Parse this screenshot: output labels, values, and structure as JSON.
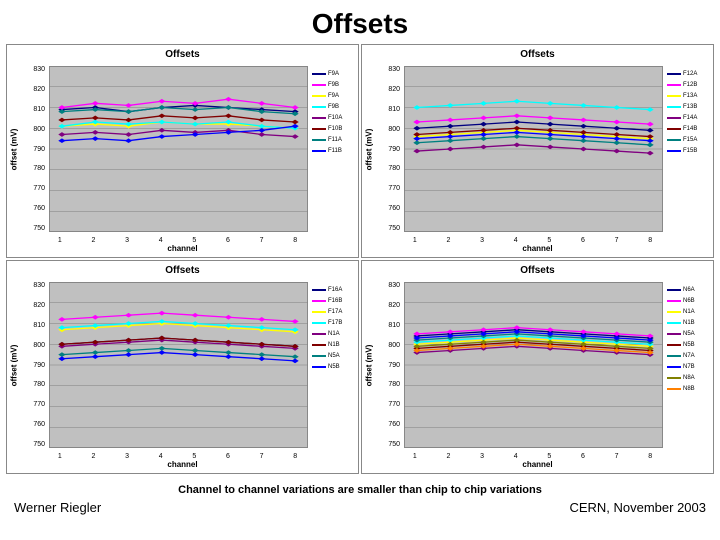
{
  "title": "Offsets",
  "caption": "Channel to channel variations are smaller than chip to chip variations",
  "footer": {
    "left": "Werner Riegler",
    "right": "CERN, November 2003"
  },
  "axis": {
    "xlabel": "channel",
    "ylabel": "offset (mV)",
    "xticks": [
      1,
      2,
      3,
      4,
      5,
      6,
      7,
      8
    ],
    "yticks": [
      830,
      820,
      810,
      800,
      790,
      780,
      770,
      760,
      750
    ],
    "ylim": [
      750,
      830
    ]
  },
  "colors": {
    "plot_bg": "#c0c0c0",
    "grid": "#808080"
  },
  "charts": [
    {
      "title": "Offsets",
      "legend": [
        "F9A",
        "F9B",
        "F9A",
        "F9B",
        "F10A",
        "F10B",
        "F11A",
        "F11B"
      ],
      "series": [
        {
          "color": "#000080",
          "vals": [
            809,
            810,
            808,
            810,
            811,
            810,
            809,
            808
          ]
        },
        {
          "color": "#ff00ff",
          "vals": [
            810,
            812,
            811,
            813,
            812,
            814,
            812,
            810
          ]
        },
        {
          "color": "#ffff00",
          "vals": [
            801,
            802,
            801,
            803,
            802,
            802,
            801,
            800
          ]
        },
        {
          "color": "#00ffff",
          "vals": [
            801,
            803,
            802,
            803,
            802,
            803,
            801,
            800
          ]
        },
        {
          "color": "#800080",
          "vals": [
            797,
            798,
            797,
            799,
            798,
            799,
            797,
            796
          ]
        },
        {
          "color": "#800000",
          "vals": [
            804,
            805,
            804,
            806,
            805,
            806,
            804,
            803
          ]
        },
        {
          "color": "#008080",
          "vals": [
            808,
            809,
            808,
            810,
            809,
            810,
            808,
            807
          ]
        },
        {
          "color": "#0000ff",
          "vals": [
            794,
            795,
            794,
            796,
            797,
            798,
            799,
            801
          ]
        }
      ]
    },
    {
      "title": "Offsets",
      "legend": [
        "F12A",
        "F12B",
        "F13A",
        "F13B",
        "F14A",
        "F14B",
        "F15A",
        "F15B"
      ],
      "series": [
        {
          "color": "#000080",
          "vals": [
            800,
            801,
            802,
            803,
            802,
            801,
            800,
            799
          ]
        },
        {
          "color": "#ff00ff",
          "vals": [
            803,
            804,
            805,
            806,
            805,
            804,
            803,
            802
          ]
        },
        {
          "color": "#ffff00",
          "vals": [
            796,
            797,
            798,
            799,
            798,
            797,
            796,
            795
          ]
        },
        {
          "color": "#00ffff",
          "vals": [
            810,
            811,
            812,
            813,
            812,
            811,
            810,
            809
          ]
        },
        {
          "color": "#800080",
          "vals": [
            789,
            790,
            791,
            792,
            791,
            790,
            789,
            788
          ]
        },
        {
          "color": "#800000",
          "vals": [
            797,
            798,
            799,
            800,
            799,
            798,
            797,
            796
          ]
        },
        {
          "color": "#008080",
          "vals": [
            793,
            794,
            795,
            796,
            795,
            794,
            793,
            792
          ]
        },
        {
          "color": "#0000ff",
          "vals": [
            795,
            796,
            797,
            798,
            797,
            796,
            795,
            794
          ]
        }
      ]
    },
    {
      "title": "Offsets",
      "legend": [
        "F16A",
        "F16B",
        "F17A",
        "F17B",
        "N1A",
        "N1B",
        "N5A",
        "N5B"
      ],
      "series": [
        {
          "color": "#000080",
          "vals": [
            800,
            801,
            802,
            803,
            802,
            801,
            800,
            799
          ]
        },
        {
          "color": "#ff00ff",
          "vals": [
            812,
            813,
            814,
            815,
            814,
            813,
            812,
            811
          ]
        },
        {
          "color": "#ffff00",
          "vals": [
            807,
            808,
            809,
            810,
            809,
            808,
            807,
            806
          ]
        },
        {
          "color": "#00ffff",
          "vals": [
            808,
            809,
            810,
            811,
            810,
            809,
            808,
            807
          ]
        },
        {
          "color": "#800080",
          "vals": [
            799,
            800,
            801,
            802,
            801,
            800,
            799,
            798
          ]
        },
        {
          "color": "#800000",
          "vals": [
            800,
            801,
            802,
            803,
            802,
            801,
            800,
            799
          ]
        },
        {
          "color": "#008080",
          "vals": [
            795,
            796,
            797,
            798,
            797,
            796,
            795,
            794
          ]
        },
        {
          "color": "#0000ff",
          "vals": [
            793,
            794,
            795,
            796,
            795,
            794,
            793,
            792
          ]
        }
      ]
    },
    {
      "title": "Offsets",
      "legend": [
        "N6A",
        "N6B",
        "N1A",
        "N1B",
        "N5A",
        "N5B",
        "N7A",
        "N7B",
        "N8A",
        "N8B"
      ],
      "series": [
        {
          "color": "#000080",
          "vals": [
            804,
            805,
            806,
            807,
            806,
            805,
            804,
            803
          ]
        },
        {
          "color": "#ff00ff",
          "vals": [
            805,
            806,
            807,
            808,
            807,
            806,
            805,
            804
          ]
        },
        {
          "color": "#ffff00",
          "vals": [
            800,
            801,
            802,
            803,
            802,
            801,
            800,
            799
          ]
        },
        {
          "color": "#00ffff",
          "vals": [
            801,
            802,
            803,
            804,
            803,
            802,
            801,
            800
          ]
        },
        {
          "color": "#800080",
          "vals": [
            796,
            797,
            798,
            799,
            798,
            797,
            796,
            795
          ]
        },
        {
          "color": "#800000",
          "vals": [
            798,
            799,
            800,
            801,
            800,
            799,
            798,
            797
          ]
        },
        {
          "color": "#008080",
          "vals": [
            802,
            803,
            804,
            805,
            804,
            803,
            802,
            801
          ]
        },
        {
          "color": "#0000ff",
          "vals": [
            803,
            804,
            805,
            806,
            805,
            804,
            803,
            802
          ]
        },
        {
          "color": "#808000",
          "vals": [
            799,
            800,
            801,
            802,
            801,
            800,
            799,
            798
          ]
        },
        {
          "color": "#ff8000",
          "vals": [
            797,
            798,
            799,
            800,
            799,
            798,
            797,
            796
          ]
        }
      ]
    }
  ]
}
